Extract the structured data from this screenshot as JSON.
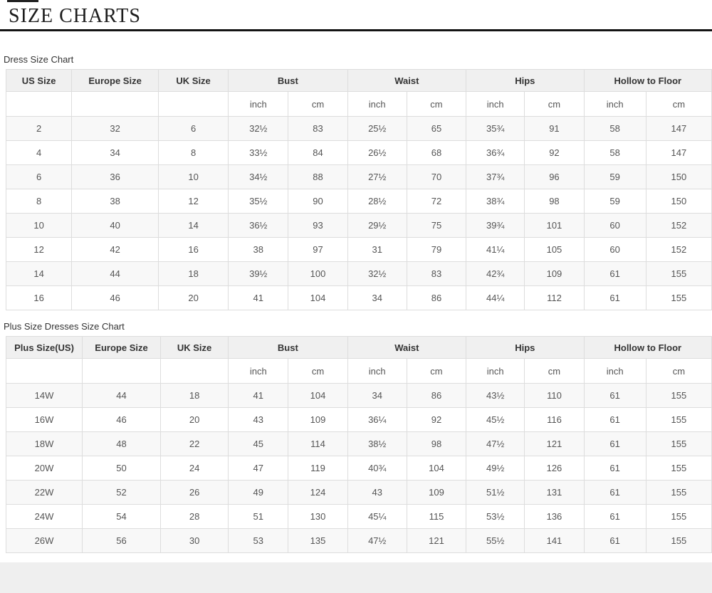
{
  "page": {
    "title": "SIZE CHARTS"
  },
  "colors": {
    "header_bg": "#f0f0f0",
    "row_alt_bg": "#f8f8f8",
    "table_border": "#dddddd",
    "title_divider": "#141414",
    "footer_strip": "#efefef"
  },
  "tables": {
    "dress": {
      "label": "Dress Size Chart",
      "columns": [
        {
          "label": "US Size",
          "span": 1
        },
        {
          "label": "Europe Size",
          "span": 1
        },
        {
          "label": "UK Size",
          "span": 1
        },
        {
          "label": "Bust",
          "span": 2
        },
        {
          "label": "Waist",
          "span": 2
        },
        {
          "label": "Hips",
          "span": 2
        },
        {
          "label": "Hollow to Floor",
          "span": 2
        }
      ],
      "units": [
        "",
        "",
        "",
        "inch",
        "cm",
        "inch",
        "cm",
        "inch",
        "cm",
        "inch",
        "cm"
      ],
      "rows": [
        [
          "2",
          "32",
          "6",
          "32½",
          "83",
          "25½",
          "65",
          "35¾",
          "91",
          "58",
          "147"
        ],
        [
          "4",
          "34",
          "8",
          "33½",
          "84",
          "26½",
          "68",
          "36¾",
          "92",
          "58",
          "147"
        ],
        [
          "6",
          "36",
          "10",
          "34½",
          "88",
          "27½",
          "70",
          "37¾",
          "96",
          "59",
          "150"
        ],
        [
          "8",
          "38",
          "12",
          "35½",
          "90",
          "28½",
          "72",
          "38¾",
          "98",
          "59",
          "150"
        ],
        [
          "10",
          "40",
          "14",
          "36½",
          "93",
          "29½",
          "75",
          "39¾",
          "101",
          "60",
          "152"
        ],
        [
          "12",
          "42",
          "16",
          "38",
          "97",
          "31",
          "79",
          "41¼",
          "105",
          "60",
          "152"
        ],
        [
          "14",
          "44",
          "18",
          "39½",
          "100",
          "32½",
          "83",
          "42¾",
          "109",
          "61",
          "155"
        ],
        [
          "16",
          "46",
          "20",
          "41",
          "104",
          "34",
          "86",
          "44¼",
          "112",
          "61",
          "155"
        ]
      ]
    },
    "plus": {
      "label": "Plus Size Dresses Size Chart",
      "columns": [
        {
          "label": "Plus Size(US)",
          "span": 1
        },
        {
          "label": "Europe Size",
          "span": 1
        },
        {
          "label": "UK Size",
          "span": 1
        },
        {
          "label": "Bust",
          "span": 2
        },
        {
          "label": "Waist",
          "span": 2
        },
        {
          "label": "Hips",
          "span": 2
        },
        {
          "label": "Hollow to Floor",
          "span": 2
        }
      ],
      "units": [
        "",
        "",
        "",
        "inch",
        "cm",
        "inch",
        "cm",
        "inch",
        "cm",
        "inch",
        "cm"
      ],
      "rows": [
        [
          "14W",
          "44",
          "18",
          "41",
          "104",
          "34",
          "86",
          "43½",
          "110",
          "61",
          "155"
        ],
        [
          "16W",
          "46",
          "20",
          "43",
          "109",
          "36¼",
          "92",
          "45½",
          "116",
          "61",
          "155"
        ],
        [
          "18W",
          "48",
          "22",
          "45",
          "114",
          "38½",
          "98",
          "47½",
          "121",
          "61",
          "155"
        ],
        [
          "20W",
          "50",
          "24",
          "47",
          "119",
          "40¾",
          "104",
          "49½",
          "126",
          "61",
          "155"
        ],
        [
          "22W",
          "52",
          "26",
          "49",
          "124",
          "43",
          "109",
          "51½",
          "131",
          "61",
          "155"
        ],
        [
          "24W",
          "54",
          "28",
          "51",
          "130",
          "45¼",
          "115",
          "53½",
          "136",
          "61",
          "155"
        ],
        [
          "26W",
          "56",
          "30",
          "53",
          "135",
          "47½",
          "121",
          "55½",
          "141",
          "61",
          "155"
        ]
      ]
    }
  }
}
